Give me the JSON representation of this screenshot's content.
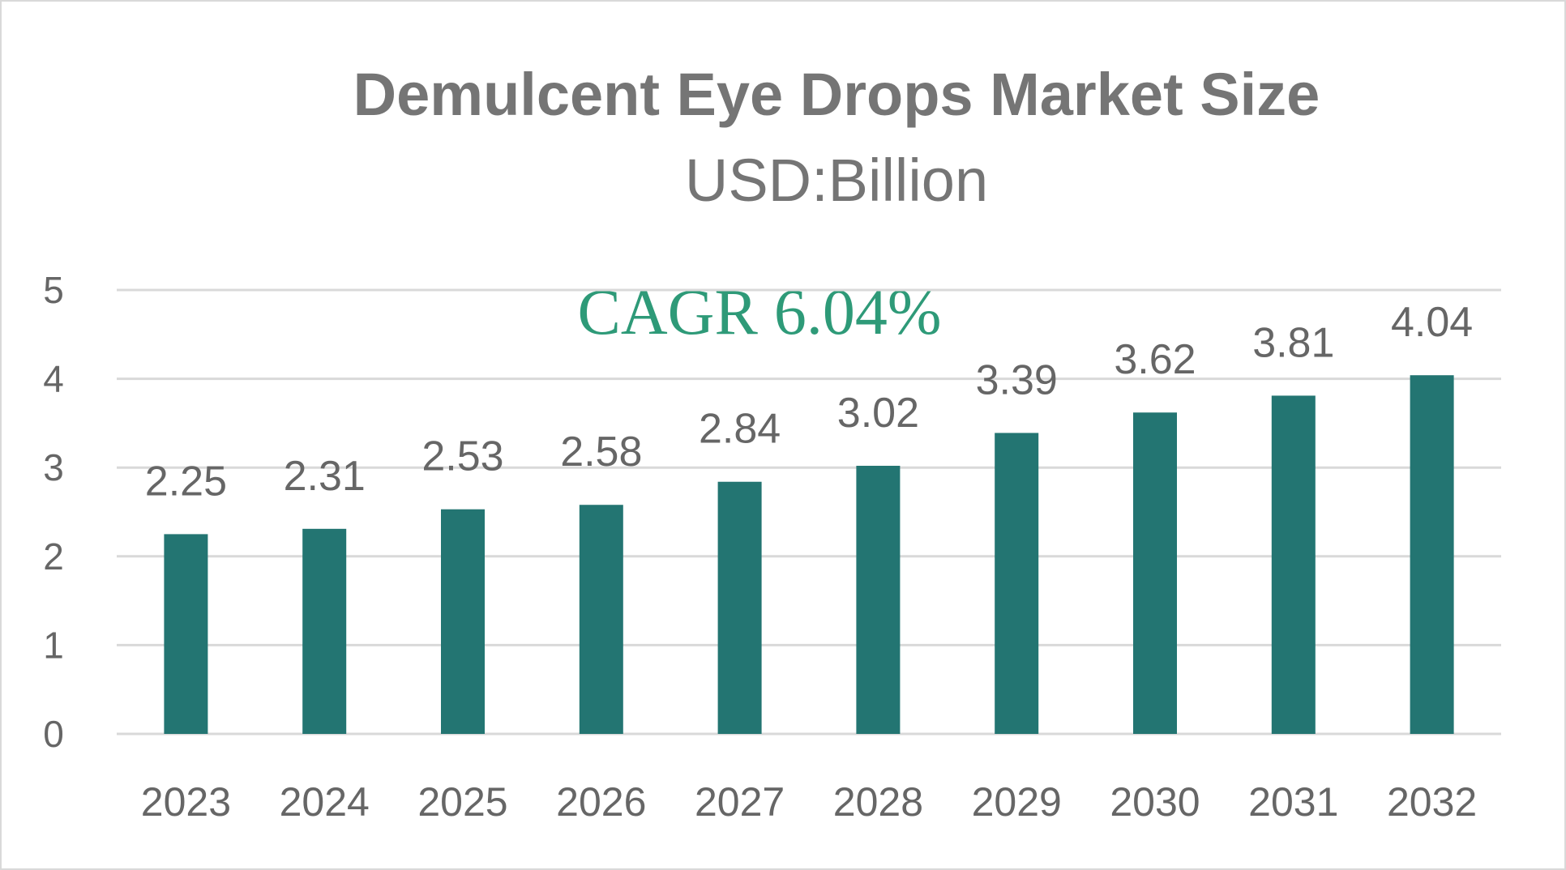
{
  "chart_data": {
    "type": "bar",
    "title": "Demulcent Eye Drops Market Size",
    "subtitle": "USD:Billion",
    "annotation": "CAGR 6.04%",
    "categories": [
      "2023",
      "2024",
      "2025",
      "2026",
      "2027",
      "2028",
      "2029",
      "2030",
      "2031",
      "2032"
    ],
    "values": [
      2.25,
      2.31,
      2.53,
      2.58,
      2.84,
      3.02,
      3.39,
      3.62,
      3.81,
      4.04
    ],
    "data_labels": [
      "2.25",
      "2.31",
      "2.53",
      "2.58",
      "2.84",
      "3.02",
      "3.39",
      "3.62",
      "3.81",
      "4.04"
    ],
    "y_ticks": [
      "0",
      "1",
      "2",
      "3",
      "4",
      "5"
    ],
    "ylim": [
      0,
      5
    ],
    "grid": true,
    "legend": "none",
    "colors": {
      "bar": "#237572",
      "annotation": "#2e9a78",
      "grid": "#d9d9d9",
      "text": "#666666"
    }
  }
}
